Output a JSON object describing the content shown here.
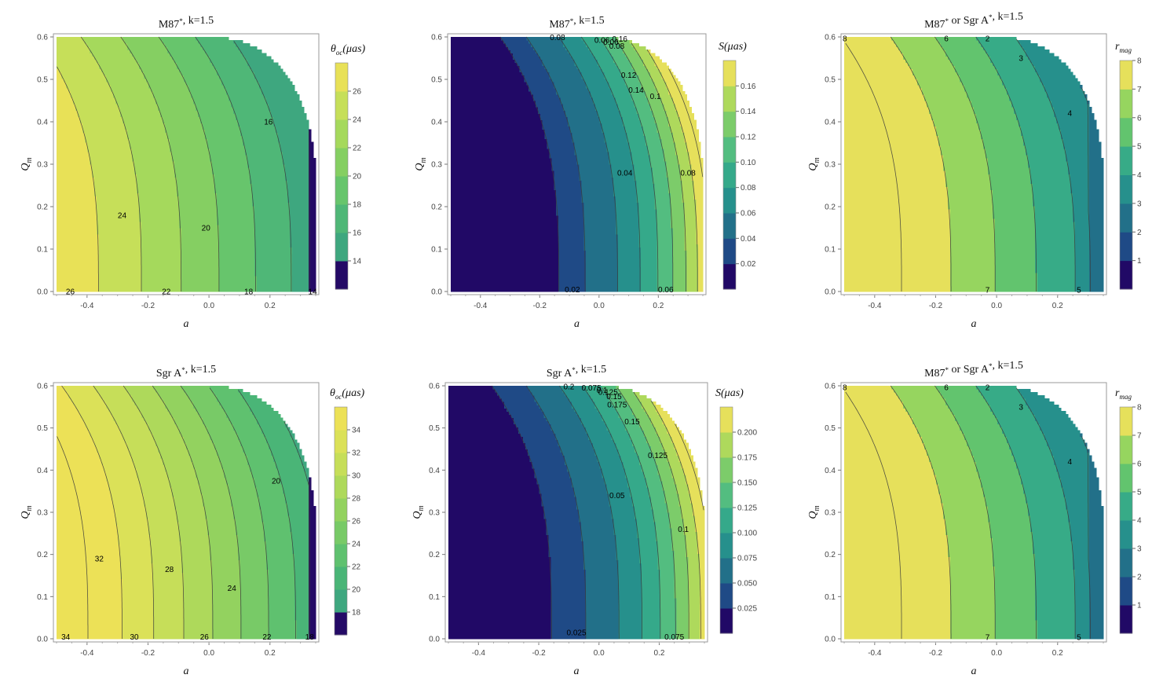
{
  "chart_data": [
    {
      "type": "contour",
      "title": "M87*, k=1.5",
      "xlabel": "a",
      "ylabel": "Q_m",
      "xlim": [
        -0.5,
        0.35
      ],
      "ylim": [
        0,
        0.6
      ],
      "xticks": [
        "-0.4",
        "-0.2",
        "0.0",
        "0.2"
      ],
      "yticks": [
        "0.0",
        "0.1",
        "0.2",
        "0.3",
        "0.4",
        "0.5",
        "0.6"
      ],
      "colorbar_title": "θ_oc(μas)",
      "colorbar_ticks": [
        "14",
        "16",
        "18",
        "20",
        "22",
        "24",
        "26"
      ],
      "contour_labels": [
        "26",
        "24",
        "22",
        "20",
        "18",
        "16",
        "14"
      ],
      "colors": [
        "#240a66",
        "#3ea77f",
        "#4fb777",
        "#67c56c",
        "#85cf62",
        "#a5d95c",
        "#c6df59",
        "#e8e157"
      ]
    },
    {
      "type": "contour",
      "title": "M87*, k=1.5",
      "xlabel": "a",
      "ylabel": "Q_m",
      "xlim": [
        -0.5,
        0.35
      ],
      "ylim": [
        0,
        0.6
      ],
      "xticks": [
        "-0.4",
        "-0.2",
        "0.0",
        "0.2"
      ],
      "yticks": [
        "0.0",
        "0.1",
        "0.2",
        "0.3",
        "0.4",
        "0.5",
        "0.6"
      ],
      "colorbar_title": "S(μas)",
      "colorbar_ticks": [
        "0.02",
        "0.04",
        "0.06",
        "0.08",
        "0.10",
        "0.12",
        "0.14",
        "0.16"
      ],
      "contour_labels": [
        "0.02",
        "0.04",
        "0.06",
        "0.08",
        "0.1",
        "0.12",
        "0.14",
        "0.16",
        "0.06",
        "0.06",
        "0.08",
        "0.08"
      ],
      "colors": [
        "#210966",
        "#1f4a86",
        "#227089",
        "#26908c",
        "#35a98a",
        "#53bd80",
        "#7ccc6a",
        "#aed95c",
        "#e6e05b"
      ]
    },
    {
      "type": "contour",
      "title": "M87* or Sgr A*, k=1.5",
      "xlabel": "a",
      "ylabel": "Q_m",
      "xlim": [
        -0.5,
        0.35
      ],
      "ylim": [
        0,
        0.6
      ],
      "xticks": [
        "-0.4",
        "-0.2",
        "0.0",
        "0.2"
      ],
      "yticks": [
        "0.0",
        "0.1",
        "0.2",
        "0.3",
        "0.4",
        "0.5",
        "0.6"
      ],
      "colorbar_title": "r_mag",
      "colorbar_ticks": [
        "1",
        "2",
        "3",
        "4",
        "5",
        "6",
        "7",
        "8"
      ],
      "contour_labels": [
        "8",
        "7",
        "6",
        "5",
        "4",
        "3",
        "2"
      ],
      "colors": [
        "#210966",
        "#1f4a86",
        "#227089",
        "#26908c",
        "#37ab87",
        "#62c46e",
        "#96d55f",
        "#e6e05b"
      ]
    },
    {
      "type": "contour",
      "title": "Sgr A*, k=1.5",
      "xlabel": "a",
      "ylabel": "Q_m",
      "xlim": [
        -0.5,
        0.35
      ],
      "ylim": [
        0,
        0.6
      ],
      "xticks": [
        "-0.4",
        "-0.2",
        "0.0",
        "0.2"
      ],
      "yticks": [
        "0.0",
        "0.1",
        "0.2",
        "0.3",
        "0.4",
        "0.5",
        "0.6"
      ],
      "colorbar_title": "θ_oc(μas)",
      "colorbar_ticks": [
        "18",
        "20",
        "22",
        "24",
        "26",
        "28",
        "30",
        "32",
        "34"
      ],
      "contour_labels": [
        "34",
        "32",
        "30",
        "28",
        "26",
        "24",
        "22",
        "20",
        "18"
      ],
      "colors": [
        "#240a66",
        "#3ea77f",
        "#4ab577",
        "#5fc16f",
        "#78ca67",
        "#93d25f",
        "#aed95b",
        "#c6de59",
        "#dbe158",
        "#ece157"
      ]
    },
    {
      "type": "contour",
      "title": "Sgr A*, k=1.5",
      "xlabel": "a",
      "ylabel": "Q_m",
      "xlim": [
        -0.5,
        0.35
      ],
      "ylim": [
        0,
        0.6
      ],
      "xticks": [
        "-0.4",
        "-0.2",
        "0.0",
        "0.2"
      ],
      "yticks": [
        "0.0",
        "0.1",
        "0.2",
        "0.3",
        "0.4",
        "0.5",
        "0.6"
      ],
      "colorbar_title": "S(μas)",
      "colorbar_ticks": [
        "0.025",
        "0.050",
        "0.075",
        "0.100",
        "0.125",
        "0.150",
        "0.175",
        "0.200"
      ],
      "contour_labels": [
        "0.025",
        "0.05",
        "0.075",
        "0.1",
        "0.125",
        "0.15",
        "0.175",
        "0.2",
        "0.075",
        "0.1",
        "0.125",
        "0.15"
      ],
      "colors": [
        "#210966",
        "#1f4a86",
        "#227089",
        "#26908c",
        "#35a98a",
        "#53bd80",
        "#7ccc6a",
        "#aed95c",
        "#e6e05b"
      ]
    },
    {
      "type": "contour",
      "title": "M87* or Sgr A*, k=1.5",
      "xlabel": "a",
      "ylabel": "Q_m",
      "xlim": [
        -0.5,
        0.35
      ],
      "ylim": [
        0,
        0.6
      ],
      "xticks": [
        "-0.4",
        "-0.2",
        "0.0",
        "0.2"
      ],
      "yticks": [
        "0.0",
        "0.1",
        "0.2",
        "0.3",
        "0.4",
        "0.5",
        "0.6"
      ],
      "colorbar_title": "r_mag",
      "colorbar_ticks": [
        "1",
        "2",
        "3",
        "4",
        "5",
        "6",
        "7",
        "8"
      ],
      "contour_labels": [
        "8",
        "7",
        "6",
        "5",
        "4",
        "3",
        "2"
      ],
      "colors": [
        "#210966",
        "#1f4a86",
        "#227089",
        "#26908c",
        "#37ab87",
        "#62c46e",
        "#96d55f",
        "#e6e05b"
      ]
    }
  ]
}
